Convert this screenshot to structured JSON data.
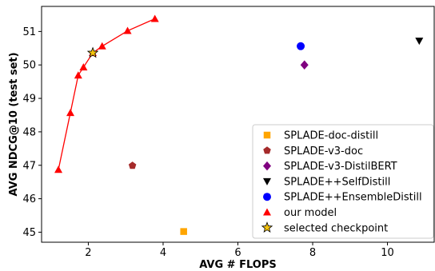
{
  "chart_data": {
    "type": "scatter",
    "title": "",
    "xlabel": "AVG # FLOPS",
    "ylabel": "AVG NDCG@10 (test set)",
    "xlim": [
      0.75,
      11.25
    ],
    "ylim": [
      44.7,
      51.75
    ],
    "xticks": [
      2,
      4,
      6,
      8,
      10
    ],
    "yticks": [
      45,
      46,
      47,
      48,
      49,
      50,
      51
    ],
    "grid": false,
    "legend_position": "bottom-right",
    "series": [
      {
        "name": "SPLADE-doc-distill",
        "marker": "square",
        "color": "#FFA500",
        "points": [
          [
            4.55,
            45.02
          ]
        ]
      },
      {
        "name": "SPLADE-v3-doc",
        "marker": "pentagon",
        "color": "#A52A2A",
        "points": [
          [
            3.18,
            46.99
          ]
        ]
      },
      {
        "name": "SPLADE-v3-DistilBERT",
        "marker": "diamond",
        "color": "#800080",
        "points": [
          [
            7.78,
            50.0
          ]
        ]
      },
      {
        "name": "SPLADE++SelfDistill",
        "marker": "triangle-down",
        "color": "#000000",
        "points": [
          [
            10.85,
            50.72
          ]
        ]
      },
      {
        "name": "SPLADE++EnsembleDistill",
        "marker": "circle",
        "color": "#0000FF",
        "points": [
          [
            7.68,
            50.56
          ]
        ]
      },
      {
        "name": "our model",
        "marker": "triangle-up",
        "color": "#FF0000",
        "connected": true,
        "points": [
          [
            1.2,
            46.87
          ],
          [
            1.52,
            48.57
          ],
          [
            1.73,
            49.69
          ],
          [
            1.87,
            49.93
          ],
          [
            2.12,
            50.36
          ],
          [
            2.37,
            50.56
          ],
          [
            3.05,
            51.02
          ],
          [
            3.78,
            51.38
          ]
        ]
      },
      {
        "name": "selected checkpoint",
        "marker": "star",
        "color": "#F4C20D",
        "points": [
          [
            2.12,
            50.36
          ]
        ]
      }
    ]
  }
}
